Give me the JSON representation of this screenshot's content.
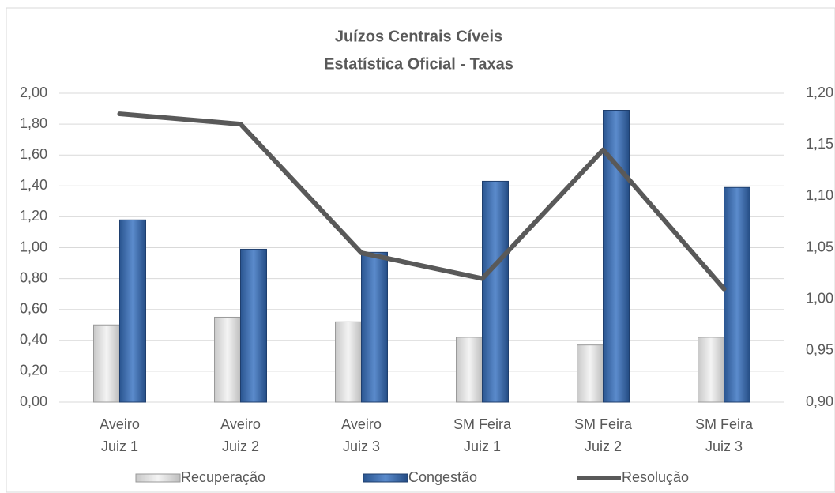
{
  "chart_data": {
    "type": "bar_line",
    "title": [
      "Juízos Centrais Cíveis",
      "Estatística Oficial - Taxas"
    ],
    "categories": [
      [
        "Aveiro",
        "Juiz 1"
      ],
      [
        "Aveiro",
        "Juiz 2"
      ],
      [
        "Aveiro",
        "Juiz 3"
      ],
      [
        "SM Feira",
        "Juiz 1"
      ],
      [
        "SM Feira",
        "Juiz 2"
      ],
      [
        "SM Feira",
        "Juiz 3"
      ]
    ],
    "series": [
      {
        "name": "Recuperação",
        "type": "bar",
        "color": "#e0e0e0",
        "values": [
          0.5,
          0.55,
          0.52,
          0.42,
          0.37,
          0.42
        ]
      },
      {
        "name": "Congestão",
        "type": "bar",
        "color": "#3f6fb0",
        "values": [
          1.18,
          0.99,
          0.97,
          1.43,
          1.89,
          1.39
        ]
      },
      {
        "name": "Resolução",
        "type": "line",
        "axis": "y2",
        "color": "#595959",
        "values": [
          1.18,
          1.17,
          1.045,
          1.02,
          1.145,
          1.01
        ]
      }
    ],
    "ylim": [
      0,
      2
    ],
    "yticks": [
      {
        "value": 0,
        "label": "0,00"
      },
      {
        "value": 0.2,
        "label": "0,20"
      },
      {
        "value": 0.4,
        "label": "0,40"
      },
      {
        "value": 0.6,
        "label": "0,60"
      },
      {
        "value": 0.8,
        "label": "0,80"
      },
      {
        "value": 1,
        "label": "1,00"
      },
      {
        "value": 1.2,
        "label": "1,20"
      },
      {
        "value": 1.4,
        "label": "1,40"
      },
      {
        "value": 1.6,
        "label": "1,60"
      },
      {
        "value": 1.8,
        "label": "1,80"
      },
      {
        "value": 2,
        "label": "2,00"
      }
    ],
    "y2lim": [
      0.9,
      1.2
    ],
    "y2ticks": [
      {
        "value": 0.9,
        "label": "0,90"
      },
      {
        "value": 0.95,
        "label": "0,95"
      },
      {
        "value": 1,
        "label": "1,00"
      },
      {
        "value": 1.05,
        "label": "1,05"
      },
      {
        "value": 1.1,
        "label": "1,10"
      },
      {
        "value": 1.15,
        "label": "1,15"
      },
      {
        "value": 1.2,
        "label": "1,20"
      }
    ],
    "grid": true,
    "legend": "bottom"
  }
}
